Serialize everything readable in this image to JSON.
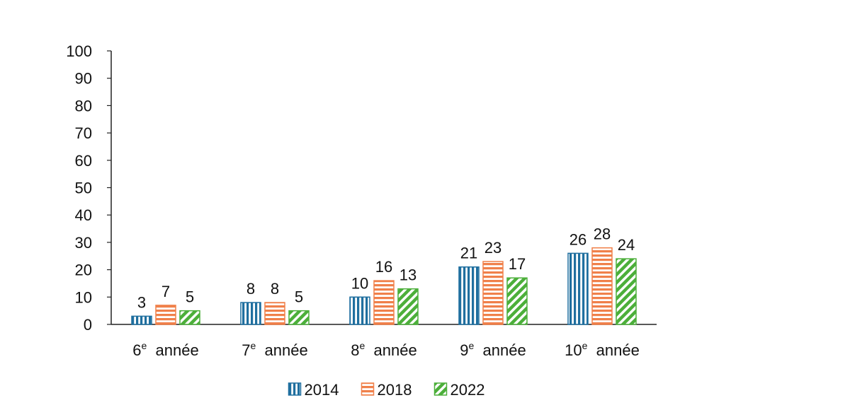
{
  "chart_data": {
    "type": "bar",
    "categories": [
      {
        "num": "6",
        "sup": "e",
        "word": "année"
      },
      {
        "num": "7",
        "sup": "e",
        "word": "année"
      },
      {
        "num": "8",
        "sup": "e",
        "word": "année"
      },
      {
        "num": "9",
        "sup": "e",
        "word": "année"
      },
      {
        "num": "10",
        "sup": "e",
        "word": "année"
      }
    ],
    "series": [
      {
        "name": "2014",
        "values": [
          3,
          8,
          10,
          21,
          26
        ],
        "color": "#1f6f9f",
        "pattern": "vertical-stripes"
      },
      {
        "name": "2018",
        "values": [
          7,
          8,
          16,
          23,
          28
        ],
        "color": "#f0804a",
        "pattern": "horizontal-stripes"
      },
      {
        "name": "2022",
        "values": [
          5,
          5,
          13,
          17,
          24
        ],
        "color": "#4caf3a",
        "pattern": "diagonal-stripes"
      }
    ],
    "ylim": [
      0,
      100
    ],
    "yticks": [
      0,
      10,
      20,
      30,
      40,
      50,
      60,
      70,
      80,
      90,
      100
    ],
    "grid": false,
    "legend_position": "bottom",
    "data_labels": true
  }
}
